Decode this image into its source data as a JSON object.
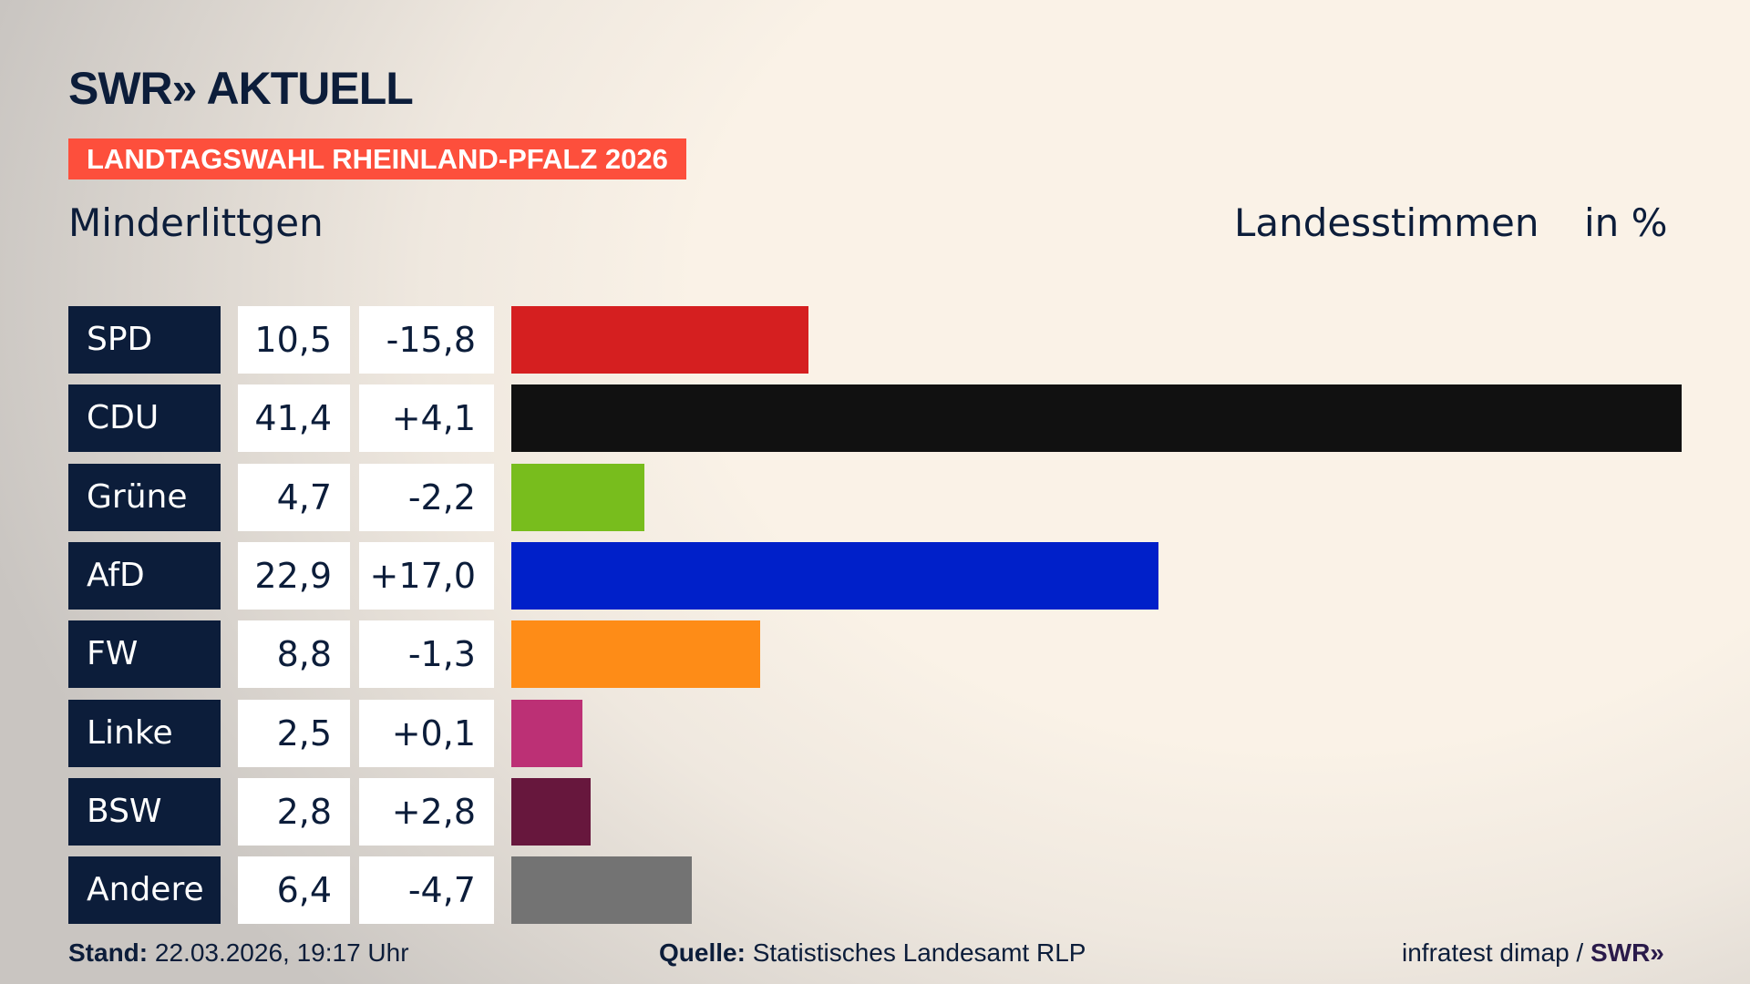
{
  "header": {
    "logo": "SWR» AKTUELL",
    "banner": "LANDTAGSWAHL RHEINLAND-PFALZ 2026",
    "place": "Minderlittgen",
    "metric": "Landesstimmen",
    "unit": "in %"
  },
  "chart_data": {
    "type": "bar",
    "orientation": "horizontal",
    "categories": [
      "SPD",
      "CDU",
      "Grüne",
      "AfD",
      "FW",
      "Linke",
      "BSW",
      "Andere"
    ],
    "values": [
      10.5,
      41.4,
      4.7,
      22.9,
      8.8,
      2.5,
      2.8,
      6.4
    ],
    "values_label": [
      "10,5",
      "41,4",
      "4,7",
      "22,9",
      "8,8",
      "2,5",
      "2,8",
      "6,4"
    ],
    "diff_label": [
      "-15,8",
      "+4,1",
      "-2,2",
      "+17,0",
      "-1,3",
      "+0,1",
      "+2,8",
      "-4,7"
    ],
    "colors": [
      "#d51f20",
      "#111111",
      "#78bd1d",
      "#0020c9",
      "#fe8c17",
      "#bc3075",
      "#67173d",
      "#737373"
    ],
    "ylabel": "Landesstimmen in %"
  },
  "footer": {
    "stand_label": "Stand:",
    "stand": "22.03.2026, 19:17 Uhr",
    "source_label": "Quelle:",
    "source": "Statistisches Landesamt RLP",
    "credit": "infratest dimap / ",
    "credit_logo": "SWR»"
  }
}
